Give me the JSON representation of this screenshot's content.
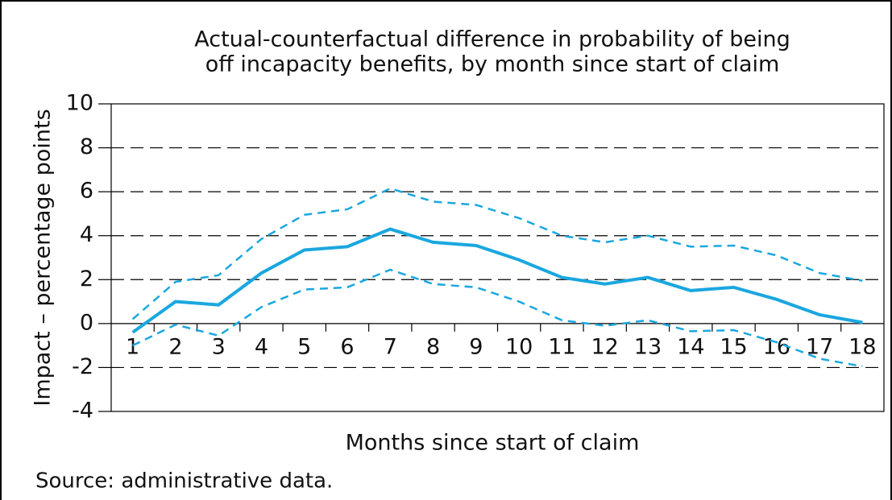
{
  "chart_data": {
    "type": "line",
    "title": [
      "Actual-counterfactual difference in probability of being",
      "off incapacity benefits, by month since start of claim"
    ],
    "x_label": "Months since start of claim",
    "y_label": "Impact – percentage points",
    "source": "Source: administrative data.",
    "categories": [
      "1",
      "2",
      "3",
      "4",
      "5",
      "6",
      "7",
      "8",
      "9",
      "10",
      "11",
      "12",
      "13",
      "14",
      "15",
      "16",
      "17",
      "18"
    ],
    "series": [
      {
        "color": "#1aa7e0",
        "style": "solid",
        "values": [
          -0.4,
          1.0,
          0.85,
          2.3,
          3.35,
          3.5,
          4.3,
          3.7,
          3.55,
          2.9,
          2.1,
          1.8,
          2.1,
          1.5,
          1.65,
          1.1,
          0.4,
          0.05
        ]
      },
      {
        "color": "#1aa7e0",
        "style": "dashed",
        "values": [
          0.2,
          1.9,
          2.2,
          3.85,
          4.95,
          5.2,
          6.15,
          5.55,
          5.4,
          4.8,
          4.0,
          3.7,
          4.0,
          3.5,
          3.55,
          3.1,
          2.3,
          1.95
        ]
      },
      {
        "color": "#1aa7e0",
        "style": "dashed",
        "values": [
          -1.0,
          -0.05,
          -0.55,
          0.75,
          1.55,
          1.65,
          2.45,
          1.8,
          1.65,
          1.0,
          0.15,
          -0.1,
          0.15,
          -0.35,
          -0.3,
          -0.85,
          -1.6,
          -1.95
        ]
      }
    ],
    "ylim": [
      -4,
      10
    ],
    "yticks": [
      -4,
      -2,
      0,
      2,
      4,
      6,
      8,
      10
    ],
    "grid": true
  }
}
